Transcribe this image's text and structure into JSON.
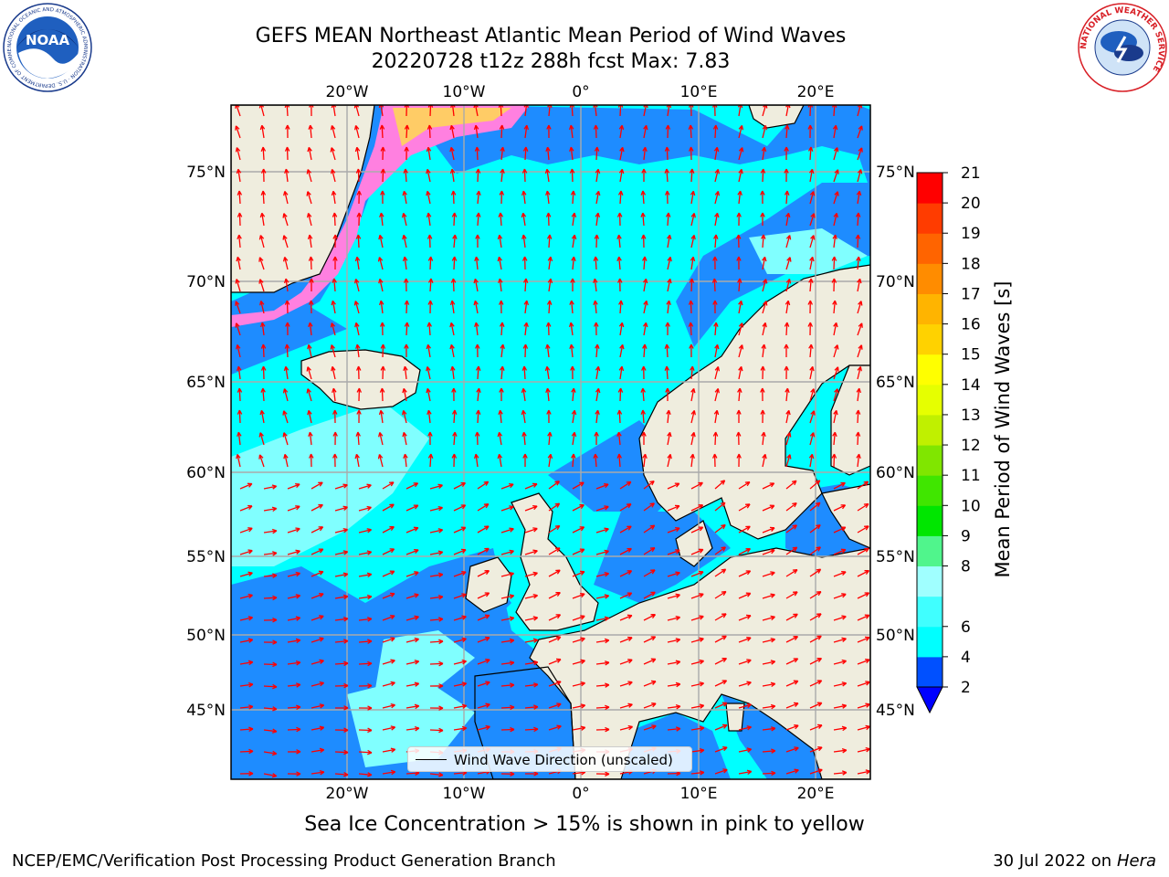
{
  "title": {
    "line1": "GEFS MEAN Northeast Atlantic Mean Period of Wind Waves",
    "line2": "20220728 t12z 288h fcst   Max: 7.83"
  },
  "map": {
    "lon_labels": [
      "20°W",
      "10°W",
      "0°",
      "10°E",
      "20°E"
    ],
    "lat_labels": [
      "75°N",
      "70°N",
      "65°N",
      "60°N",
      "55°N",
      "50°N",
      "45°N"
    ],
    "extent": {
      "lon_min": -30,
      "lon_max": 25,
      "lat_min": 41,
      "lat_max": 78
    },
    "colors": {
      "ocean_mid": "#00ffff",
      "ocean_low": "#1e8cff",
      "ocean_light": "#80ffff",
      "land": "#efedde",
      "arrow": "#ff0000",
      "ice": "#ff80e0"
    },
    "legend_label": "Wind Wave Direction (unscaled)"
  },
  "colorbar": {
    "label": "Mean Period of Wind Waves [s]",
    "ticks": [
      "21",
      "20",
      "19",
      "18",
      "17",
      "16",
      "15",
      "14",
      "13",
      "12",
      "11",
      "10",
      "9",
      "8",
      "6",
      "4",
      "2"
    ],
    "levels": [
      2,
      4,
      6,
      7,
      8,
      9,
      10,
      11,
      12,
      13,
      14,
      15,
      16,
      17,
      18,
      19,
      20,
      21
    ],
    "bins": [
      "#0050ff",
      "#00ffff",
      "#40ffff",
      "#a0ffff",
      "#50f58c",
      "#00e600",
      "#40e600",
      "#80e600",
      "#c0f000",
      "#e6ff00",
      "#ffff00",
      "#ffd200",
      "#ffb400",
      "#ff8c00",
      "#ff6400",
      "#ff3c00",
      "#ff0000"
    ],
    "under_color": "#0000ff"
  },
  "caption": "Sea Ice Concentration > 15% is shown in pink to yellow",
  "footer": {
    "left": "NCEP/EMC/Verification Post Processing Product Generation Branch",
    "date": "30 Jul 2022 on ",
    "host": "Hera"
  },
  "logos": {
    "noaa": "NOAA",
    "noaa_ring": "NATIONAL OCEANIC AND ATMOSPHERIC ADMINISTRATION · U.S. DEPARTMENT OF COMMERCE",
    "nws_ring": "NATIONAL WEATHER SERVICE"
  }
}
